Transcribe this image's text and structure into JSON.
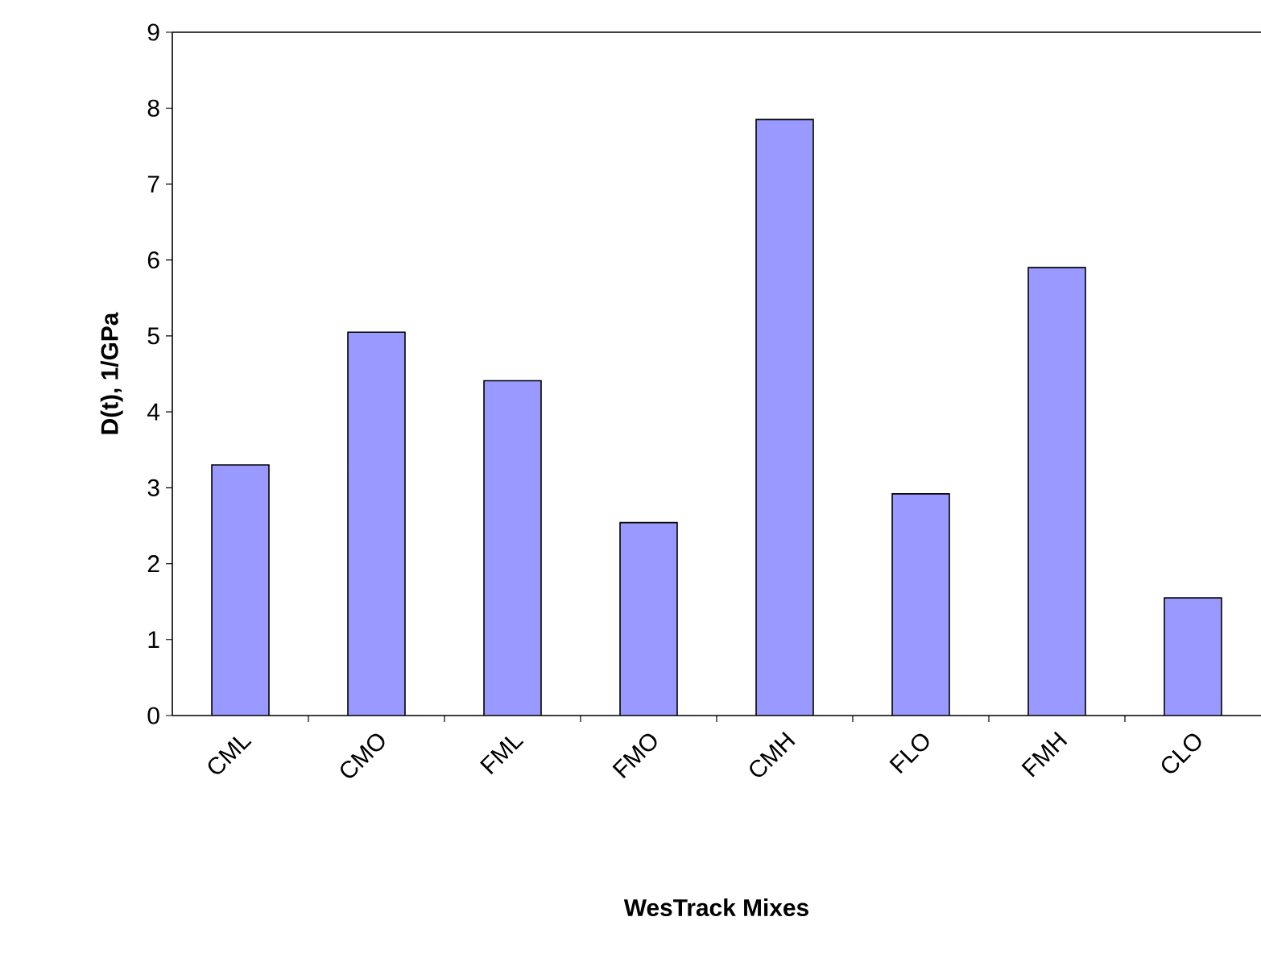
{
  "chart_data": {
    "type": "bar",
    "categories": [
      "CML",
      "CMO",
      "FML",
      "FMO",
      "CMH",
      "FLO",
      "FMH",
      "CLO"
    ],
    "values": [
      3.3,
      5.05,
      4.41,
      2.54,
      7.85,
      2.92,
      5.9,
      1.55
    ],
    "color": "#9999ff",
    "xlabel": "WesTrack Mixes",
    "ylabel": "D(t), 1/GPa",
    "ylim": [
      0,
      9
    ],
    "yticks": [
      0,
      1,
      2,
      3,
      4,
      5,
      6,
      7,
      8,
      9
    ],
    "grid": false
  }
}
